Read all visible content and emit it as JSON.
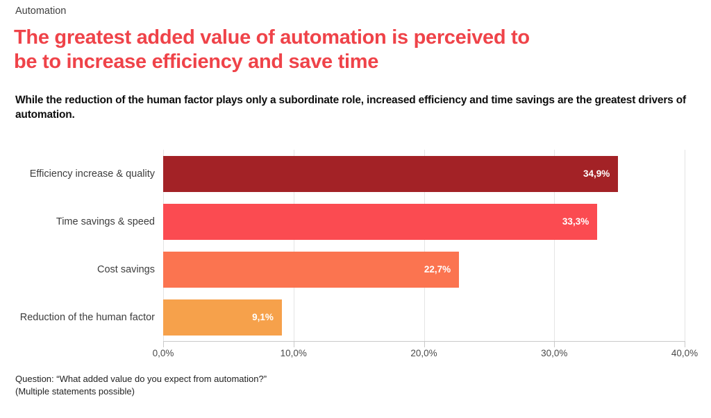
{
  "page": {
    "eyebrow": "Automation",
    "title_line1": "The greatest added value of automation is perceived to",
    "title_line2": "be to increase efficiency and save time",
    "subtitle": "While the reduction of the human factor plays only a subordinate role, increased efficiency and time savings are the greatest drivers of automation.",
    "footer_line1": "Question: “What added value do you expect from automation?”",
    "footer_line2": "(Multiple statements possible)"
  },
  "colors": {
    "title_red": "#ef4349",
    "bar_dark_red": "#a32226",
    "bar_red": "#fb4b51",
    "bar_orange": "#fb7450",
    "bar_amber": "#f6a14b",
    "gridline": "#e4e4e4",
    "axis_line": "#c9c9c9",
    "axis_text": "#4a4a4a"
  },
  "chart_data": {
    "type": "bar",
    "orientation": "horizontal",
    "title": "The greatest added value of automation is perceived to be to increase efficiency and save time",
    "categories": [
      "Efficiency increase & quality",
      "Time savings & speed",
      "Cost savings",
      "Reduction of the human factor"
    ],
    "values": [
      34.9,
      33.3,
      22.7,
      9.1
    ],
    "value_labels": [
      "34,9%",
      "33,3%",
      "22,7%",
      "9,1%"
    ],
    "bar_colors": [
      "#a32226",
      "#fb4b51",
      "#fb7450",
      "#f6a14b"
    ],
    "xlabel": "",
    "ylabel": "",
    "xlim": [
      0,
      40
    ],
    "x_tick_labels": [
      "0,0%",
      "10,0%",
      "20,0%",
      "30,0%",
      "40,0%"
    ],
    "x_tick_values": [
      0,
      10,
      20,
      30,
      40
    ],
    "grid": true,
    "legend": false
  }
}
